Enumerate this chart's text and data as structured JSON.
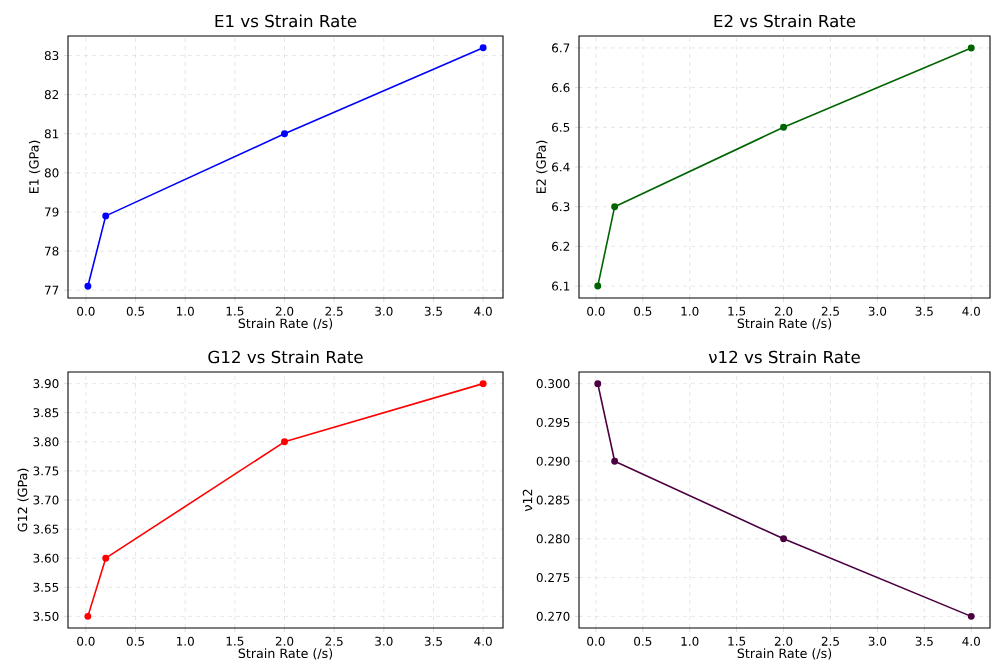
{
  "chart_data": [
    {
      "type": "line",
      "title": "E1 vs Strain Rate",
      "xlabel": "Strain Rate (/s)",
      "ylabel": "E1 (GPa)",
      "x": [
        0.02,
        0.2,
        2,
        4
      ],
      "series": [
        {
          "color": "#0000ff",
          "values": [
            77.1,
            78.9,
            81.0,
            83.2
          ]
        }
      ],
      "marker": "circle",
      "grid": true,
      "xlim": [
        -0.18,
        4.2
      ],
      "ylim": [
        76.8,
        83.5
      ],
      "xticks": [
        {
          "value": 0,
          "label": "0.0"
        },
        0.5,
        {
          "value": 1,
          "label": "1.0"
        },
        1.5,
        {
          "value": 2,
          "label": "2.0"
        },
        2.5,
        {
          "value": 3,
          "label": "3.0"
        },
        3.5,
        {
          "value": 4,
          "label": "4.0"
        }
      ],
      "yticks": [
        77,
        78,
        79,
        80,
        81,
        82,
        83
      ]
    },
    {
      "type": "line",
      "title": "E2 vs Strain Rate",
      "xlabel": "Strain Rate (/s)",
      "ylabel": "E2 (GPa)",
      "x": [
        0.02,
        0.2,
        2,
        4
      ],
      "series": [
        {
          "color": "#006400",
          "values": [
            6.1,
            6.3,
            6.5,
            6.7
          ]
        }
      ],
      "marker": "circle",
      "grid": true,
      "xlim": [
        -0.18,
        4.2
      ],
      "ylim": [
        6.07,
        6.73
      ],
      "xticks": [
        {
          "value": 0,
          "label": "0.0"
        },
        0.5,
        {
          "value": 1,
          "label": "1.0"
        },
        1.5,
        {
          "value": 2,
          "label": "2.0"
        },
        2.5,
        {
          "value": 3,
          "label": "3.0"
        },
        3.5,
        {
          "value": 4,
          "label": "4.0"
        }
      ],
      "yticks": [
        6.1,
        6.2,
        6.3,
        6.4,
        6.5,
        6.6,
        6.7
      ]
    },
    {
      "type": "line",
      "title": "G12 vs Strain Rate",
      "xlabel": "Strain Rate (/s)",
      "ylabel": "G12 (GPa)",
      "x": [
        0.02,
        0.2,
        2,
        4
      ],
      "series": [
        {
          "color": "#ff0000",
          "values": [
            3.5,
            3.6,
            3.8,
            3.9
          ]
        }
      ],
      "marker": "circle",
      "grid": true,
      "xlim": [
        -0.18,
        4.2
      ],
      "ylim": [
        3.48,
        3.92
      ],
      "xticks": [
        {
          "value": 0,
          "label": "0.0"
        },
        0.5,
        {
          "value": 1,
          "label": "1.0"
        },
        1.5,
        {
          "value": 2,
          "label": "2.0"
        },
        2.5,
        {
          "value": 3,
          "label": "3.0"
        },
        3.5,
        {
          "value": 4,
          "label": "4.0"
        }
      ],
      "yticks": [
        {
          "value": 3.5,
          "label": "3.50"
        },
        3.55,
        {
          "value": 3.6,
          "label": "3.60"
        },
        3.65,
        {
          "value": 3.7,
          "label": "3.70"
        },
        3.75,
        {
          "value": 3.8,
          "label": "3.80"
        },
        3.85,
        {
          "value": 3.9,
          "label": "3.90"
        }
      ]
    },
    {
      "type": "line",
      "title": "ν12 vs Strain Rate",
      "xlabel": "Strain Rate (/s)",
      "ylabel": "ν12",
      "x": [
        0.02,
        0.2,
        2,
        4
      ],
      "series": [
        {
          "color": "#4b0040",
          "values": [
            0.3,
            0.29,
            0.28,
            0.27
          ]
        }
      ],
      "marker": "circle",
      "grid": true,
      "xlim": [
        -0.18,
        4.2
      ],
      "ylim": [
        0.2685,
        0.3015
      ],
      "xticks": [
        {
          "value": 0,
          "label": "0.0"
        },
        0.5,
        {
          "value": 1,
          "label": "1.0"
        },
        1.5,
        {
          "value": 2,
          "label": "2.0"
        },
        2.5,
        {
          "value": 3,
          "label": "3.0"
        },
        3.5,
        {
          "value": 4,
          "label": "4.0"
        }
      ],
      "yticks": [
        {
          "value": 0.27,
          "label": "0.270"
        },
        0.275,
        {
          "value": 0.28,
          "label": "0.280"
        },
        0.285,
        {
          "value": 0.29,
          "label": "0.290"
        },
        0.295,
        {
          "value": 0.3,
          "label": "0.300"
        }
      ]
    }
  ]
}
